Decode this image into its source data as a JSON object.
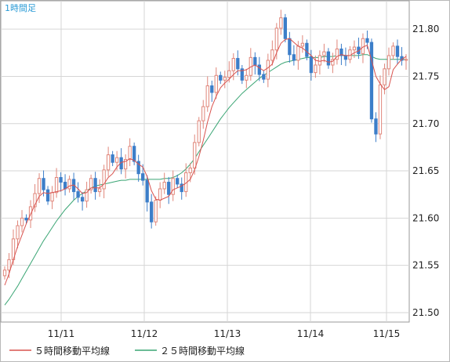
{
  "chart_data": {
    "type": "candlestick",
    "title": "1時間足",
    "x_tick_labels": [
      "11/11",
      "11/12",
      "11/13",
      "11/14",
      "11/15"
    ],
    "y_ticks": [
      21.5,
      21.55,
      21.6,
      21.65,
      21.7,
      21.75,
      21.8
    ],
    "y_tick_labels": [
      "21.50",
      "21.55",
      "21.60",
      "21.65",
      "21.70",
      "21.75",
      "21.80"
    ],
    "ylim": [
      21.49,
      21.83
    ],
    "grid": true,
    "legend_position": "bottom",
    "up_color": "#e0867a",
    "down_color": "#3d7ec9",
    "close_series": [
      21.545,
      21.556,
      21.578,
      21.592,
      21.6,
      21.598,
      21.612,
      21.626,
      21.642,
      21.63,
      21.618,
      21.627,
      21.643,
      21.638,
      21.631,
      21.641,
      21.628,
      21.622,
      21.618,
      21.63,
      21.642,
      21.628,
      21.631,
      21.651,
      21.667,
      21.659,
      21.664,
      21.652,
      21.662,
      21.676,
      21.66,
      21.647,
      21.64,
      21.617,
      21.596,
      21.619,
      21.631,
      21.638,
      21.625,
      21.642,
      21.636,
      21.628,
      21.648,
      21.653,
      21.68,
      21.703,
      21.718,
      21.74,
      21.733,
      21.751,
      21.746,
      21.749,
      21.756,
      21.769,
      21.758,
      21.746,
      21.751,
      21.77,
      21.762,
      21.752,
      21.747,
      21.767,
      21.778,
      21.801,
      21.812,
      21.79,
      21.773,
      21.767,
      21.782,
      21.785,
      21.771,
      21.754,
      21.762,
      21.772,
      21.776,
      21.762,
      21.768,
      21.779,
      21.772,
      21.768,
      21.778,
      21.781,
      21.774,
      21.79,
      21.786,
      21.705,
      21.689,
      21.741,
      21.758,
      21.772,
      21.782,
      21.771,
      21.767,
      21.768
    ],
    "series": [
      {
        "name": "５時間移動平均線",
        "color": "#d9534f",
        "values": [
          21.529,
          21.541,
          21.556,
          21.57,
          21.582,
          21.594,
          21.604,
          21.614,
          21.623,
          21.627,
          21.626,
          21.627,
          21.628,
          21.629,
          21.631,
          21.634,
          21.635,
          21.631,
          21.626,
          21.627,
          21.632,
          21.632,
          21.632,
          21.636,
          21.643,
          21.647,
          21.654,
          21.659,
          21.66,
          21.663,
          21.661,
          21.657,
          21.654,
          21.644,
          21.629,
          21.62,
          21.619,
          21.621,
          21.623,
          21.63,
          21.632,
          21.634,
          21.637,
          21.641,
          21.651,
          21.665,
          21.682,
          21.702,
          21.718,
          21.729,
          21.738,
          21.743,
          21.747,
          21.752,
          21.756,
          21.756,
          21.757,
          21.76,
          21.762,
          21.759,
          21.756,
          21.759,
          21.763,
          21.775,
          21.785,
          21.789,
          21.79,
          21.786,
          21.782,
          21.78,
          21.776,
          21.772,
          21.767,
          21.766,
          21.767,
          21.765,
          21.766,
          21.771,
          21.773,
          21.772,
          21.772,
          21.775,
          21.777,
          21.781,
          21.783,
          21.767,
          21.75,
          21.742,
          21.736,
          21.739,
          21.757,
          21.763,
          21.768,
          21.771
        ]
      },
      {
        "name": "２５時間移動平均線",
        "color": "#3aa574",
        "values": [
          21.508,
          21.514,
          21.521,
          21.528,
          21.536,
          21.544,
          21.552,
          21.56,
          21.568,
          21.576,
          21.583,
          21.59,
          21.597,
          21.603,
          21.609,
          21.614,
          21.619,
          21.623,
          21.626,
          21.629,
          21.632,
          21.634,
          21.635,
          21.636,
          21.637,
          21.638,
          21.639,
          21.64,
          21.64,
          21.641,
          21.641,
          21.641,
          21.641,
          21.641,
          21.641,
          21.641,
          21.641,
          21.642,
          21.642,
          21.643,
          21.645,
          21.648,
          21.652,
          21.657,
          21.663,
          21.67,
          21.677,
          21.684,
          21.691,
          21.698,
          21.705,
          21.711,
          21.717,
          21.722,
          21.727,
          21.732,
          21.736,
          21.74,
          21.744,
          21.748,
          21.751,
          21.754,
          21.757,
          21.76,
          21.763,
          21.765,
          21.766,
          21.767,
          21.768,
          21.769,
          21.77,
          21.77,
          21.77,
          21.77,
          21.771,
          21.771,
          21.771,
          21.772,
          21.772,
          21.772,
          21.772,
          21.772,
          21.772,
          21.773,
          21.773,
          21.771,
          21.769,
          21.768,
          21.768,
          21.768,
          21.768,
          21.768,
          21.768,
          21.768
        ]
      }
    ]
  },
  "legend": {
    "ma5_label": "５時間移動平均線",
    "ma25_label": "２５時間移動平均線"
  }
}
